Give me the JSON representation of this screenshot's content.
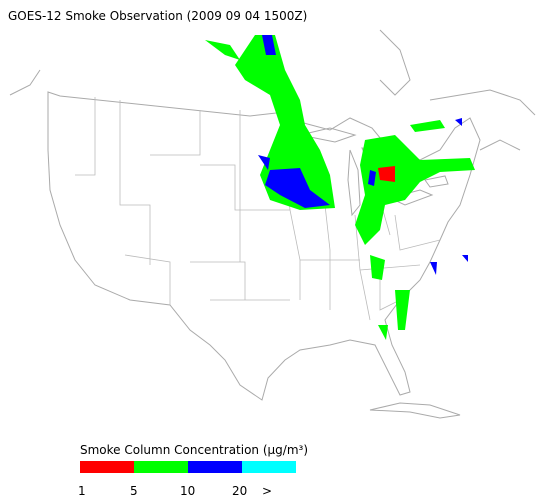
{
  "header": {
    "title": "GOES-12 Smoke Observation (2009 09 04  1500Z)"
  },
  "legend": {
    "title": "Smoke Column Concentration (μg/m³)",
    "labels": [
      "1",
      "5",
      "10",
      "20",
      ">"
    ],
    "colors": [
      "#ff0000",
      "#00ff00",
      "#0000ff",
      "#00ffff"
    ]
  }
}
